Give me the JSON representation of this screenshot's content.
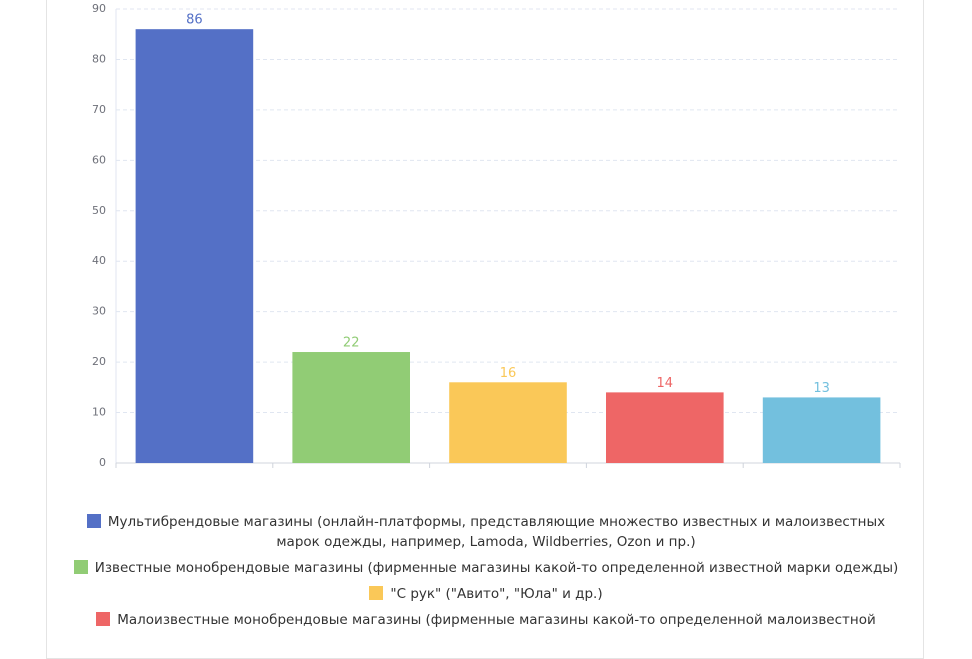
{
  "chart_data": {
    "type": "bar",
    "categories": [
      "Мультибрендовые магазины (онлайн-платформы, представляющие множество известных и малоизвестных марок одежды, например, Lamoda, Wildberries, Ozon и пр.)",
      "Известные монобрендовые магазины (фирменные магазины какой-то определенной известной марки одежды)",
      "\"С рук\" (\"Авито\", \"Юла\" и др.)",
      "Малоизвестные монобрендовые магазины (фирменные магазины какой-то определенной малоизвестной",
      null
    ],
    "values": [
      86,
      22,
      16,
      14,
      13
    ],
    "colors": [
      "#5470c6",
      "#91cc75",
      "#fac858",
      "#ee6666",
      "#73c0de"
    ],
    "ylim": [
      0,
      90
    ],
    "yticks": [
      0,
      10,
      20,
      30,
      40,
      50,
      60,
      70,
      80,
      90
    ],
    "grid": true
  }
}
